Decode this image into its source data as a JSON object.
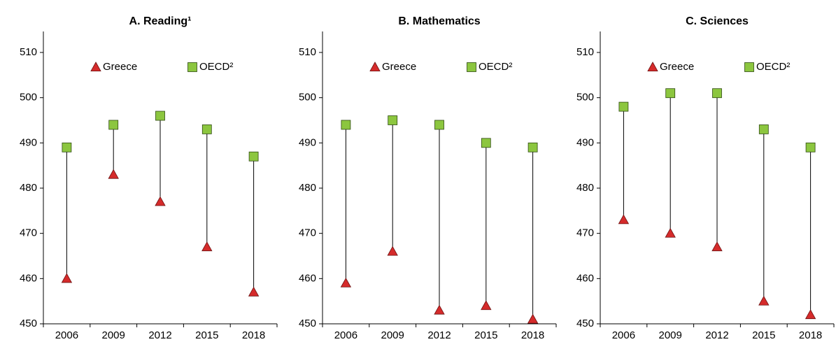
{
  "chart_data": [
    {
      "type": "dot",
      "title": "A. Reading¹",
      "categories": [
        "2006",
        "2009",
        "2012",
        "2015",
        "2018"
      ],
      "series": [
        {
          "name": "Greece",
          "color": "#d52b2b",
          "values": [
            460,
            483,
            477,
            467,
            457
          ]
        },
        {
          "name": "OECD²",
          "color": "#8cc63f",
          "values": [
            489,
            494,
            496,
            493,
            487
          ]
        }
      ],
      "ylim": [
        450,
        510
      ],
      "yticks": [
        450,
        460,
        470,
        480,
        490,
        500,
        510
      ]
    },
    {
      "type": "dot",
      "title": "B. Mathematics",
      "categories": [
        "2006",
        "2009",
        "2012",
        "2015",
        "2018"
      ],
      "series": [
        {
          "name": "Greece",
          "color": "#d52b2b",
          "values": [
            459,
            466,
            453,
            454,
            451
          ]
        },
        {
          "name": "OECD²",
          "color": "#8cc63f",
          "values": [
            494,
            495,
            494,
            490,
            489
          ]
        }
      ],
      "ylim": [
        450,
        510
      ],
      "yticks": [
        450,
        460,
        470,
        480,
        490,
        500,
        510
      ]
    },
    {
      "type": "dot",
      "title": "C. Sciences",
      "categories": [
        "2006",
        "2009",
        "2012",
        "2015",
        "2018"
      ],
      "series": [
        {
          "name": "Greece",
          "color": "#d52b2b",
          "values": [
            473,
            470,
            467,
            455,
            452
          ]
        },
        {
          "name": "OECD²",
          "color": "#8cc63f",
          "values": [
            498,
            501,
            501,
            493,
            489
          ]
        }
      ],
      "ylim": [
        450,
        510
      ],
      "yticks": [
        450,
        460,
        470,
        480,
        490,
        500,
        510
      ]
    }
  ]
}
